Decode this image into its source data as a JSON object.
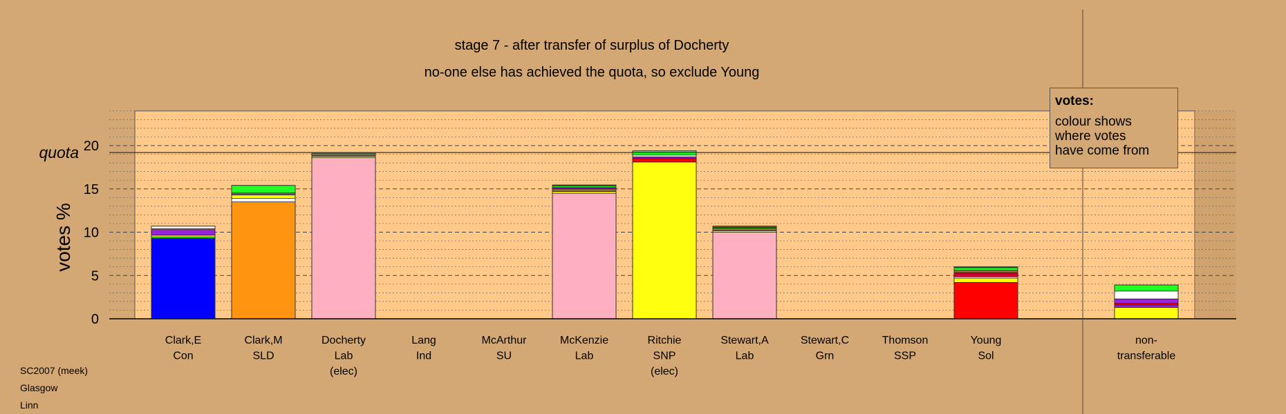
{
  "colors": {
    "background": "#d4a874",
    "plot_panel": "#ffc98a",
    "Con": "#0000ff",
    "SLD": "#ff9410",
    "Lab": "#ffb0c0",
    "SNP": "#ffff10",
    "Sol": "#ff0000",
    "Grn": "#22ff22",
    "Ind": "#8b6a3e",
    "SU": "#9922dd",
    "SSP": "#cc0033",
    "white": "#ffffff"
  },
  "notes": [
    "SC2007 (meek)",
    "Glasgow",
    "Linn"
  ],
  "legend": {
    "title": "votes:",
    "lines": [
      "colour shows",
      "where votes",
      "have come from"
    ]
  },
  "chart_data": {
    "type": "bar",
    "stacked": true,
    "title": "stage 7 - after transfer of surplus of Docherty",
    "subtitle": "no-one else has achieved the quota, so exclude Young",
    "ylabel": "votes %",
    "ylim": [
      0,
      24
    ],
    "yticks": [
      0,
      5,
      10,
      15,
      20
    ],
    "grid": "dashed at major ticks, dotted at minor ticks",
    "quota": {
      "label": "quota",
      "value": 19.2
    },
    "categories": [
      {
        "name": "Clark,E",
        "party": "Con",
        "status": ""
      },
      {
        "name": "Clark,M",
        "party": "SLD",
        "status": ""
      },
      {
        "name": "Docherty",
        "party": "Lab",
        "status": "(elec)"
      },
      {
        "name": "Lang",
        "party": "Ind",
        "status": ""
      },
      {
        "name": "McArthur",
        "party": "SU",
        "status": ""
      },
      {
        "name": "McKenzie",
        "party": "Lab",
        "status": ""
      },
      {
        "name": "Ritchie",
        "party": "SNP",
        "status": "(elec)"
      },
      {
        "name": "Stewart,A",
        "party": "Lab",
        "status": ""
      },
      {
        "name": "Stewart,C",
        "party": "Grn",
        "status": ""
      },
      {
        "name": "Thomson",
        "party": "SSP",
        "status": ""
      },
      {
        "name": "Young",
        "party": "Sol",
        "status": ""
      }
    ],
    "nontransferable": {
      "name": "non-",
      "party": "transferable"
    },
    "bars": [
      {
        "segments": [
          {
            "source": "Con",
            "value": 9.3
          },
          {
            "source": "Grn",
            "value": 0.15
          },
          {
            "source": "SNP",
            "value": 0.2
          },
          {
            "source": "SU",
            "value": 0.65
          },
          {
            "source": "Lab",
            "value": 0.1
          },
          {
            "source": "white",
            "value": 0.3
          }
        ]
      },
      {
        "segments": [
          {
            "source": "SLD",
            "value": 13.5
          },
          {
            "source": "white",
            "value": 0.4
          },
          {
            "source": "SNP",
            "value": 0.4
          },
          {
            "source": "Ind",
            "value": 0.15
          },
          {
            "source": "white",
            "value": 0.1
          },
          {
            "source": "Grn",
            "value": 0.85
          }
        ]
      },
      {
        "segments": [
          {
            "source": "Lab",
            "value": 18.6
          },
          {
            "source": "SNP",
            "value": 0.15
          },
          {
            "source": "Ind",
            "value": 0.2
          },
          {
            "source": "Grn",
            "value": 0.15
          }
        ]
      },
      {
        "segments": []
      },
      {
        "segments": []
      },
      {
        "segments": [
          {
            "source": "Lab",
            "value": 14.5
          },
          {
            "source": "SNP",
            "value": 0.2
          },
          {
            "source": "Ind",
            "value": 0.3
          },
          {
            "source": "SU",
            "value": 0.15
          },
          {
            "source": "Grn",
            "value": 0.2
          },
          {
            "source": "Ind",
            "value": 0.1
          }
        ]
      },
      {
        "segments": [
          {
            "source": "SNP",
            "value": 18.1
          },
          {
            "source": "Sol",
            "value": 0.4
          },
          {
            "source": "SU",
            "value": 0.2
          },
          {
            "source": "white",
            "value": 0.2
          },
          {
            "source": "Grn",
            "value": 0.5
          }
        ]
      },
      {
        "segments": [
          {
            "source": "Lab",
            "value": 10.0
          },
          {
            "source": "SNP",
            "value": 0.15
          },
          {
            "source": "Ind",
            "value": 0.3
          },
          {
            "source": "Grn",
            "value": 0.1
          },
          {
            "source": "Ind",
            "value": 0.15
          }
        ]
      },
      {
        "segments": []
      },
      {
        "segments": []
      },
      {
        "segments": [
          {
            "source": "Sol",
            "value": 4.2
          },
          {
            "source": "SNP",
            "value": 0.5
          },
          {
            "source": "white",
            "value": 0.15
          },
          {
            "source": "SSP",
            "value": 0.45
          },
          {
            "source": "Ind",
            "value": 0.3
          },
          {
            "source": "Grn",
            "value": 0.3
          },
          {
            "source": "Ind",
            "value": 0.1
          }
        ]
      }
    ],
    "nontransferable_segments": [
      {
        "source": "SNP",
        "value": 1.3
      },
      {
        "source": "SU",
        "value": 0.3
      },
      {
        "source": "Sol",
        "value": 0.2
      },
      {
        "source": "SU",
        "value": 0.5
      },
      {
        "source": "white",
        "value": 0.9
      },
      {
        "source": "Grn",
        "value": 0.7
      }
    ]
  }
}
